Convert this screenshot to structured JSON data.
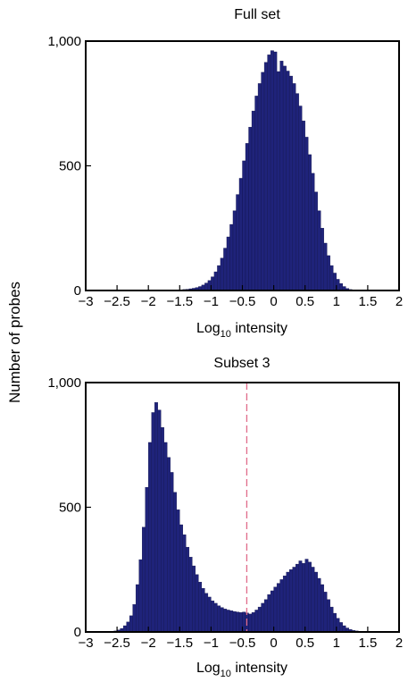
{
  "ylabel": "Number of probes",
  "chart_data": [
    {
      "type": "bar",
      "title": "Full set",
      "xlabel_main": "Log",
      "xlabel_sub": "10",
      "xlabel_rest": " intensity",
      "xlim": [
        -3,
        2
      ],
      "ylim": [
        0,
        1000
      ],
      "xticks": [
        "−3",
        "−2.5",
        "−2",
        "−1.5",
        "−1",
        "−0.5",
        "0",
        "0.5",
        "1",
        "1.5",
        "2"
      ],
      "yticks": [
        "0",
        "500",
        "1,000"
      ],
      "bar_color": "#1f237a",
      "bin_start": -2.0,
      "bin_width": 0.05,
      "values": [
        1,
        1,
        1,
        1,
        1,
        1,
        1,
        1,
        1,
        2,
        3,
        4,
        5,
        7,
        9,
        12,
        16,
        22,
        30,
        40,
        55,
        75,
        100,
        130,
        170,
        215,
        265,
        320,
        385,
        450,
        520,
        590,
        655,
        720,
        780,
        830,
        875,
        915,
        945,
        962,
        957,
        878,
        920,
        900,
        880,
        860,
        830,
        790,
        740,
        680,
        615,
        545,
        470,
        395,
        320,
        250,
        190,
        140,
        100,
        70,
        45,
        28,
        16,
        8,
        4,
        2,
        1,
        1,
        1,
        1,
        1
      ]
    },
    {
      "type": "bar",
      "title": "Subset 3",
      "xlabel_main": "Log",
      "xlabel_sub": "10",
      "xlabel_rest": " intensity",
      "xlim": [
        -3,
        2
      ],
      "ylim": [
        0,
        1000
      ],
      "xticks": [
        "−3",
        "−2.5",
        "−2",
        "−1.5",
        "−1",
        "−0.5",
        "0",
        "0.5",
        "1",
        "1.5",
        "2"
      ],
      "yticks": [
        "0",
        "500",
        "1,000"
      ],
      "bar_color": "#1f237a",
      "threshold_x": -0.43,
      "threshold_color": "#e06a8a",
      "bin_start": -2.6,
      "bin_width": 0.05,
      "values": [
        2,
        4,
        8,
        14,
        25,
        40,
        65,
        110,
        190,
        290,
        420,
        580,
        760,
        880,
        920,
        890,
        820,
        760,
        700,
        640,
        560,
        490,
        430,
        390,
        340,
        300,
        265,
        230,
        200,
        175,
        155,
        140,
        125,
        115,
        105,
        98,
        92,
        88,
        85,
        82,
        80,
        78,
        80,
        76,
        72,
        78,
        88,
        100,
        115,
        130,
        150,
        165,
        180,
        195,
        210,
        225,
        240,
        250,
        260,
        272,
        285,
        275,
        292,
        280,
        260,
        240,
        215,
        190,
        160,
        130,
        100,
        75,
        55,
        38,
        25,
        16,
        10,
        6,
        4,
        2,
        1,
        1
      ]
    }
  ]
}
